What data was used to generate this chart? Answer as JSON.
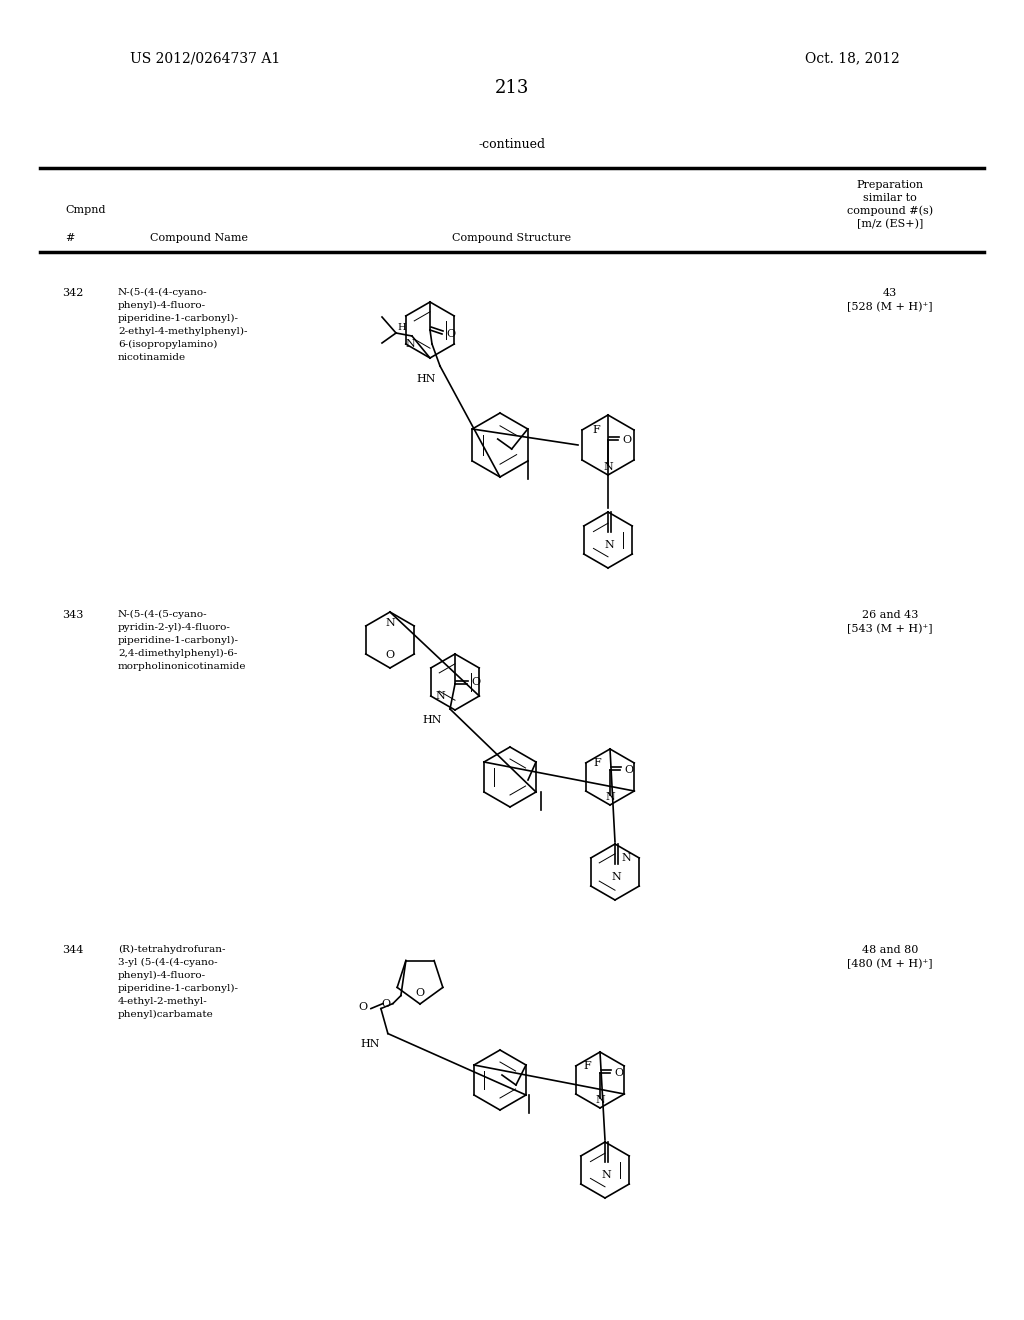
{
  "page_number": "213",
  "patent_number": "US 2012/0264737 A1",
  "patent_date": "Oct. 18, 2012",
  "continued_text": "-continued",
  "table_headers": {
    "cmpnd": "Cmpnd",
    "hash": "#",
    "compound_name": "Compound Name",
    "compound_structure": "Compound Structure",
    "preparation": "Preparation\nsimilar to\ncompound #(s)\n[m/z (ES+)]"
  },
  "compounds": [
    {
      "number": "342",
      "name": "N-(5-(4-(4-cyano-\nphenyl)-4-fluoro-\npiperidine-1-carbonyl)-\n2-ethyl-4-methylphenyl)-\n6-(isopropylamino)\nnicotinamide",
      "preparation": "43\n[528 (M + H)⁺]",
      "image_region": [
        0.18,
        0.27,
        0.82,
        0.47
      ]
    },
    {
      "number": "343",
      "name": "N-(5-(4-(5-cyano-\npyridin-2-yl)-4-fluoro-\npiperidine-1-carbonyl)-\n2,4-dimethylphenyl)-6-\nmorpholinonicotinamide",
      "preparation": "26 and 43\n[543 (M + H)⁺]",
      "image_region": [
        0.18,
        0.5,
        0.82,
        0.7
      ]
    },
    {
      "number": "344",
      "name": "(R)-tetrahydrofuran-\n3-yl (5-(4-(4-cyano-\nphenyl)-4-fluoro-\npiperidine-1-carbonyl)-\n4-ethyl-2-methyl-\nphenyl)carbamate",
      "preparation": "48 and 80\n[480 (M + H)⁺]",
      "image_region": [
        0.18,
        0.73,
        0.82,
        0.93
      ]
    }
  ],
  "bg_color": "#ffffff",
  "text_color": "#000000",
  "line_color": "#000000",
  "font_size_header": 9,
  "font_size_body": 8,
  "font_size_page": 10,
  "font_size_page_num": 12
}
